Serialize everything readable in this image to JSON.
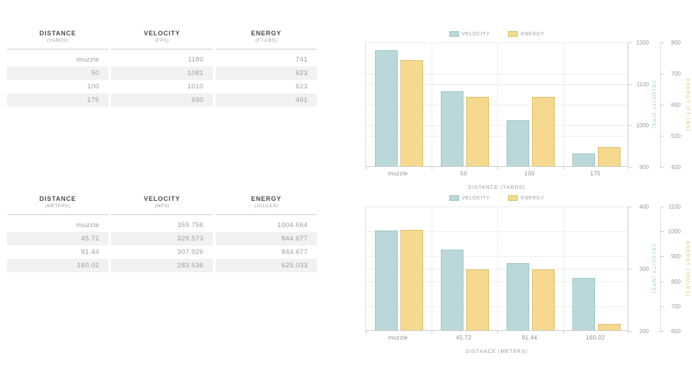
{
  "tables": [
    {
      "id": "imperial",
      "columns": [
        {
          "label": "DISTANCE",
          "unit": "(YARDS)"
        },
        {
          "label": "VELOCITY",
          "unit": "(FPS)"
        },
        {
          "label": "ENERGY",
          "unit": "(FT-LBS)"
        }
      ],
      "rows": [
        [
          "muzzle",
          "1180",
          "741"
        ],
        [
          "50",
          "1081",
          "623"
        ],
        [
          "100",
          "1010",
          "623"
        ],
        [
          "175",
          "930",
          "461"
        ]
      ]
    },
    {
      "id": "metric",
      "columns": [
        {
          "label": "DISTANCE",
          "unit": "(METERS)"
        },
        {
          "label": "VELOCITY",
          "unit": "(MPS)"
        },
        {
          "label": "ENERGY",
          "unit": "(JOULES)"
        }
      ],
      "rows": [
        [
          "muzzle",
          "359.756",
          "1004.664"
        ],
        [
          "45.72",
          "329.573",
          "844.677"
        ],
        [
          "91.44",
          "307.926",
          "844.677"
        ],
        [
          "160.02",
          "283.536",
          "625.033"
        ]
      ]
    }
  ],
  "chart_data": [
    {
      "type": "bar",
      "categories": [
        "muzzle",
        "50",
        "100",
        "175"
      ],
      "xlabel": "DISTANCE (YARDS)",
      "legend_position": "top",
      "grid": true,
      "series": [
        {
          "name": "VELOCITY",
          "values": [
            1180,
            1081,
            1010,
            930
          ],
          "ylim": [
            900,
            1200
          ],
          "ticks": [
            900,
            1000,
            1100,
            1200
          ],
          "axis_title": "VELOCITY (FPS)",
          "fill": "#bad8d9",
          "stroke": "#9ac5c6",
          "title_color": "#9fcdd0"
        },
        {
          "name": "ENERGY",
          "values": [
            741,
            623,
            623,
            461
          ],
          "ylim": [
            400,
            800
          ],
          "ticks": [
            400,
            500,
            600,
            700,
            800
          ],
          "axis_title": "ENERGY (FT-LBS)",
          "fill": "#f4d98e",
          "stroke": "#e2bd62",
          "title_color": "#e9c463"
        }
      ]
    },
    {
      "type": "bar",
      "categories": [
        "muzzle",
        "45.72",
        "91.44",
        "160.02"
      ],
      "xlabel": "DISTANCE (METERS)",
      "legend_position": "top",
      "grid": true,
      "series": [
        {
          "name": "VELOCITY",
          "values": [
            359.756,
            329.573,
            307.926,
            283.536
          ],
          "ylim": [
            200,
            400
          ],
          "ticks": [
            200,
            300,
            400
          ],
          "axis_title": "VELOCITY (MPS)",
          "fill": "#bad8d9",
          "stroke": "#9ac5c6",
          "title_color": "#9fcdd0"
        },
        {
          "name": "ENERGY",
          "values": [
            1004.664,
            844.677,
            844.677,
            625.033
          ],
          "ylim": [
            600,
            1100
          ],
          "ticks": [
            600,
            700,
            800,
            900,
            1000,
            1100
          ],
          "axis_title": "ENERGY (JOULES)",
          "fill": "#f4d98e",
          "stroke": "#e2bd62",
          "title_color": "#e9c463"
        }
      ]
    }
  ],
  "colors": {
    "grid": "#ededed",
    "axis_line": "#cccccc",
    "tick_label": "#9a9a9a",
    "x_label": "#8a8a8a",
    "table_stripe": "#f1f1f1",
    "table_header_text": "#4a4a4a",
    "table_cell_text": "#9b9b9b",
    "velocity_fill": "#bad8d9",
    "energy_fill": "#f4d98e"
  }
}
